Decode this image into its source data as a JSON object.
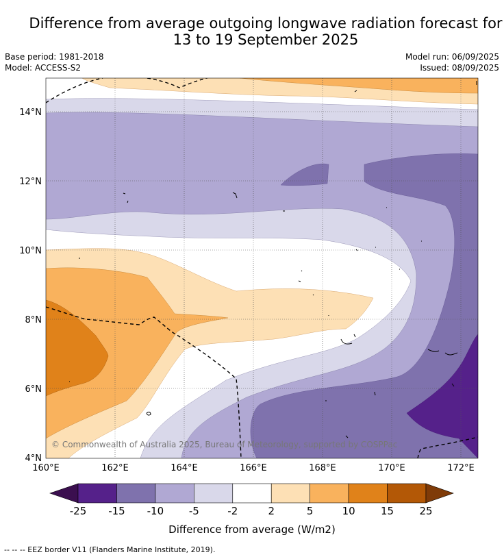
{
  "title_line1": "Difference from average outgoing longwave radiation forecast for",
  "title_line2": "13 to 19 September 2025",
  "base_period": "Base period: 1981-2018",
  "model": "Model: ACCESS-S2",
  "model_run": "Model run: 06/09/2025",
  "issued": "Issued: 08/09/2025",
  "copyright": "© Commonwealth of Australia 2025, Bureau of Meteorology, supported by COSPPac",
  "footer": "--  --  -- EEZ border V11 (Flanders Marine Institute, 2019).",
  "map": {
    "lon_labels": [
      "160°E",
      "162°E",
      "164°E",
      "166°E",
      "168°E",
      "170°E",
      "172°E"
    ],
    "lat_labels": [
      "4°N",
      "6°N",
      "8°N",
      "10°N",
      "12°N",
      "14°N"
    ]
  },
  "colorbar": {
    "label": "Difference from average (W/m2)",
    "ticks": [
      "-25",
      "-15",
      "-10",
      "-5",
      "-2",
      "2",
      "5",
      "10",
      "15",
      "25"
    ],
    "colors": [
      "#3b0f4f",
      "#55218a",
      "#7f72ad",
      "#b0a8d3",
      "#d9d8ea",
      "#ffffff",
      "#fde0b5",
      "#f9b25d",
      "#e0821a",
      "#b35806",
      "#7f3b08"
    ]
  }
}
